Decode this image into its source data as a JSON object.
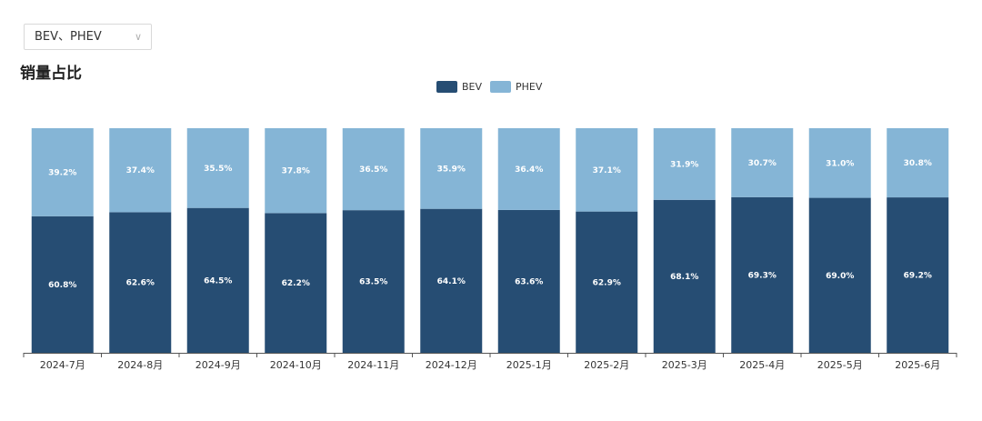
{
  "filter": {
    "selected": "BEV、PHEV",
    "chevron_icon": "chevron-down-icon"
  },
  "title": "销量占比",
  "chart_data": {
    "type": "bar",
    "stacked": true,
    "percent": true,
    "categories": [
      "2024-7月",
      "2024-8月",
      "2024-9月",
      "2024-10月",
      "2024-11月",
      "2024-12月",
      "2025-1月",
      "2025-2月",
      "2025-3月",
      "2025-4月",
      "2025-5月",
      "2025-6月"
    ],
    "series": [
      {
        "name": "BEV",
        "color": "#264d73",
        "values": [
          60.8,
          62.6,
          64.5,
          62.2,
          63.5,
          64.1,
          63.6,
          62.9,
          68.1,
          69.3,
          69.0,
          69.2
        ],
        "labels": [
          "60.8%",
          "62.6%",
          "64.5%",
          "62.2%",
          "63.5%",
          "64.1%",
          "63.6%",
          "62.9%",
          "68.1%",
          "69.3%",
          "69.0%",
          "69.2%"
        ]
      },
      {
        "name": "PHEV",
        "color": "#85b5d6",
        "values": [
          39.2,
          37.4,
          35.5,
          37.8,
          36.5,
          35.9,
          36.4,
          37.1,
          31.9,
          30.7,
          31.0,
          30.8
        ],
        "labels": [
          "39.2%",
          "37.4%",
          "35.5%",
          "37.8%",
          "36.5%",
          "35.9%",
          "36.4%",
          "37.1%",
          "31.9%",
          "30.7%",
          "31.0%",
          "30.8%"
        ]
      }
    ],
    "ylim": [
      0,
      100
    ],
    "legend_position": "top-center",
    "grid": false
  }
}
